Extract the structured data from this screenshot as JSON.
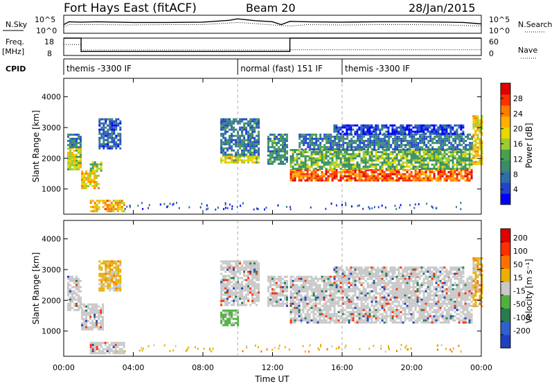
{
  "header": {
    "station": "Fort Hays East (fitACF)",
    "beam": "Beam 20",
    "date": "28/Jan/2015"
  },
  "side_labels": {
    "nsky": "N.Sky",
    "nsearch": "N.Search",
    "freq": "Freq.",
    "freq_unit": "[MHz]",
    "nave": "Nave",
    "cpid": "CPID"
  },
  "strip_ticks": {
    "noise_left": [
      "10^5",
      "10^0"
    ],
    "noise_right": [
      "10^5",
      "10^0"
    ],
    "freq_left": [
      "18",
      "8"
    ],
    "nave_right": [
      "60",
      "0"
    ]
  },
  "cpid_segments": [
    {
      "label": "themis -3300 IF",
      "start": 0.0,
      "end": 10.0
    },
    {
      "label": "normal (fast) 151 IF",
      "start": 10.0,
      "end": 16.0
    },
    {
      "label": "themis -3300 IF",
      "start": 16.0,
      "end": 24.0
    }
  ],
  "chart_data": [
    {
      "type": "line",
      "panel": "noise",
      "series": [
        {
          "name": "N.Sky",
          "x": [
            0,
            0.3,
            1,
            2,
            4,
            6,
            8,
            9.5,
            10,
            11,
            12,
            12.5,
            13,
            14,
            16,
            18,
            20,
            22,
            23,
            24
          ],
          "values": [
            2.4,
            3.2,
            3.1,
            3.2,
            3.0,
            3.0,
            3.1,
            3.6,
            4.0,
            3.5,
            3.2,
            2.4,
            3.3,
            3.2,
            3.1,
            3.2,
            3.2,
            3.1,
            3.0,
            2.6
          ]
        },
        {
          "name": "N.Search",
          "x": [
            0,
            0.3,
            2,
            4,
            6,
            8,
            10,
            11,
            12,
            13,
            14,
            16,
            18,
            20,
            22,
            24
          ],
          "values": [
            1.8,
            2.4,
            2.4,
            2.3,
            2.4,
            2.4,
            3.0,
            2.7,
            2.3,
            2.0,
            2.4,
            2.3,
            2.4,
            2.4,
            2.3,
            2.0
          ]
        }
      ],
      "ylim": [
        0,
        5
      ]
    },
    {
      "type": "line",
      "panel": "freq_nave",
      "series": [
        {
          "name": "Freq.",
          "x": [
            0,
            1,
            1,
            13,
            13,
            24
          ],
          "values": [
            18,
            18,
            10.3,
            10.3,
            18,
            18
          ]
        },
        {
          "name": "Nave",
          "x": [
            0,
            1,
            1,
            13,
            13,
            24
          ],
          "values": [
            38,
            38,
            19,
            19,
            20,
            20
          ]
        }
      ]
    },
    {
      "type": "heatmap",
      "panel": "power",
      "ylabel": "Slant Range [km]",
      "xlim": [
        0,
        24
      ],
      "ylim": [
        180,
        4600
      ],
      "y_ticks": [
        "1000",
        "2000",
        "3000",
        "4000"
      ],
      "colorbar": {
        "label": "Power [dB]",
        "range": [
          0,
          32
        ],
        "ticks": [
          "4",
          "8",
          "12",
          "16",
          "20",
          "24",
          "28"
        ],
        "colors": [
          "#0000ff",
          "#2244cc",
          "#2f6eaa",
          "#3d8a6a",
          "#45a050",
          "#9acd32",
          "#e6d800",
          "#ffb000",
          "#ff7a00",
          "#ff3000",
          "#e00000"
        ]
      },
      "regions": [
        {
          "t0": 0.2,
          "t1": 1.0,
          "r0": 1650,
          "r1": 2350,
          "v": 18
        },
        {
          "t0": 0.2,
          "t1": 1.0,
          "r0": 2350,
          "r1": 2800,
          "v": 8
        },
        {
          "t0": 1.0,
          "t1": 2.0,
          "r0": 1050,
          "r1": 1600,
          "v": 20
        },
        {
          "t0": 1.5,
          "t1": 2.2,
          "r0": 1600,
          "r1": 1900,
          "v": 16
        },
        {
          "t0": 2.0,
          "t1": 3.2,
          "r0": 2300,
          "r1": 3300,
          "v": 6
        },
        {
          "t0": 1.5,
          "t1": 3.5,
          "r0": 300,
          "r1": 650,
          "v": 22
        },
        {
          "t0": 9.0,
          "t1": 11.2,
          "r0": 1850,
          "r1": 2100,
          "v": 18
        },
        {
          "t0": 9.0,
          "t1": 11.2,
          "r0": 2100,
          "r1": 3300,
          "v": 8
        },
        {
          "t0": 11.7,
          "t1": 12.8,
          "r0": 1850,
          "r1": 2800,
          "v": 10
        },
        {
          "t0": 13.0,
          "t1": 23.5,
          "r0": 1300,
          "r1": 1650,
          "v": 26
        },
        {
          "t0": 13.0,
          "t1": 23.5,
          "r0": 1650,
          "r1": 2300,
          "v": 14
        },
        {
          "t0": 13.5,
          "t1": 23.5,
          "r0": 2300,
          "r1": 2800,
          "v": 8
        },
        {
          "t0": 15.5,
          "t1": 23.0,
          "r0": 2800,
          "r1": 3100,
          "v": 4
        },
        {
          "t0": 23.5,
          "t1": 24.0,
          "r0": 1800,
          "r1": 3400,
          "v": 20
        }
      ]
    },
    {
      "type": "heatmap",
      "panel": "velocity",
      "xlabel": "Time UT",
      "ylabel": "Slant Range [km]",
      "xlim": [
        0,
        24
      ],
      "ylim": [
        180,
        4600
      ],
      "x_ticks": [
        "00:00",
        "04:00",
        "08:00",
        "12:00",
        "16:00",
        "20:00",
        "00:00"
      ],
      "y_ticks": [
        "1000",
        "2000",
        "3000",
        "4000"
      ],
      "colorbar": {
        "label": "Velocity [m s⁻¹]",
        "ticks": [
          "200",
          "100",
          "50",
          "15",
          "-15",
          "-50",
          "-100",
          "-200"
        ],
        "colors": [
          "#2040c0",
          "#3060d0",
          "#2a7a50",
          "#50b040",
          "#c8c8c8",
          "#e8b000",
          "#ff7000",
          "#ff3000",
          "#e00000"
        ]
      },
      "regions": [
        {
          "t0": 0.2,
          "t1": 1.0,
          "r0": 1650,
          "r1": 2800,
          "v": "grey"
        },
        {
          "t0": 1.0,
          "t1": 2.2,
          "r0": 1050,
          "r1": 1900,
          "v": "grey"
        },
        {
          "t0": 2.0,
          "t1": 3.2,
          "r0": 2300,
          "r1": 3300,
          "v": "orange"
        },
        {
          "t0": 1.5,
          "t1": 3.5,
          "r0": 300,
          "r1": 650,
          "v": "grey"
        },
        {
          "t0": 9.0,
          "t1": 11.2,
          "r0": 1850,
          "r1": 3300,
          "v": "grey"
        },
        {
          "t0": 9.0,
          "t1": 10.0,
          "r0": 1200,
          "r1": 1700,
          "v": "green"
        },
        {
          "t0": 11.7,
          "t1": 12.8,
          "r0": 1850,
          "r1": 2800,
          "v": "grey"
        },
        {
          "t0": 13.0,
          "t1": 23.5,
          "r0": 1300,
          "r1": 2800,
          "v": "grey"
        },
        {
          "t0": 15.5,
          "t1": 23.0,
          "r0": 2800,
          "r1": 3100,
          "v": "grey"
        },
        {
          "t0": 23.5,
          "t1": 24.0,
          "r0": 1800,
          "r1": 3400,
          "v": "orange"
        }
      ]
    }
  ]
}
